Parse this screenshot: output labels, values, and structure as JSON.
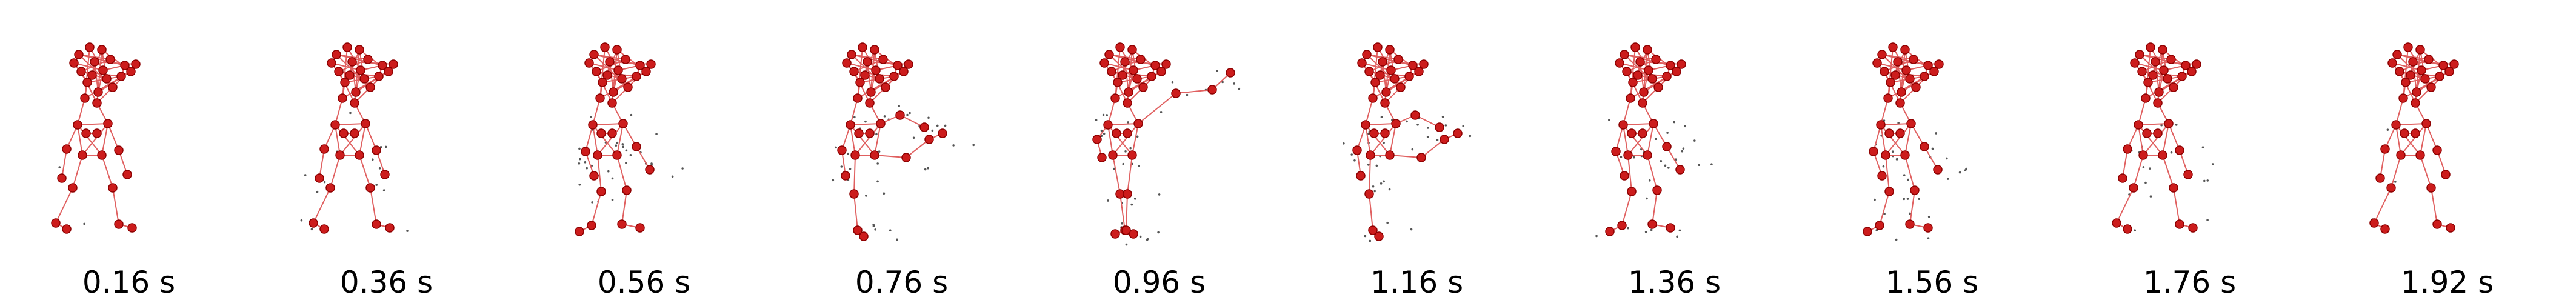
{
  "colors": {
    "skeleton_fill": "#cc1c1c",
    "skeleton_stroke": "#8c0000",
    "bone": "#e06060",
    "trail": "#555555"
  },
  "frames": [
    {
      "time_label": "0.16 s",
      "pose": "idle",
      "motion": 0.05
    },
    {
      "time_label": "0.36 s",
      "pose": "idle",
      "motion": 0.35
    },
    {
      "time_label": "0.56 s",
      "pose": "step",
      "motion": 0.8
    },
    {
      "time_label": "0.76 s",
      "pose": "kick",
      "motion": 1.0
    },
    {
      "time_label": "0.96 s",
      "pose": "reach",
      "motion": 0.9
    },
    {
      "time_label": "1.16 s",
      "pose": "kick",
      "motion": 0.9
    },
    {
      "time_label": "1.36 s",
      "pose": "step",
      "motion": 0.7
    },
    {
      "time_label": "1.56 s",
      "pose": "step",
      "motion": 0.8
    },
    {
      "time_label": "1.76 s",
      "pose": "idle",
      "motion": 0.5
    },
    {
      "time_label": "1.92 s",
      "pose": "idle",
      "motion": 0.1
    }
  ]
}
